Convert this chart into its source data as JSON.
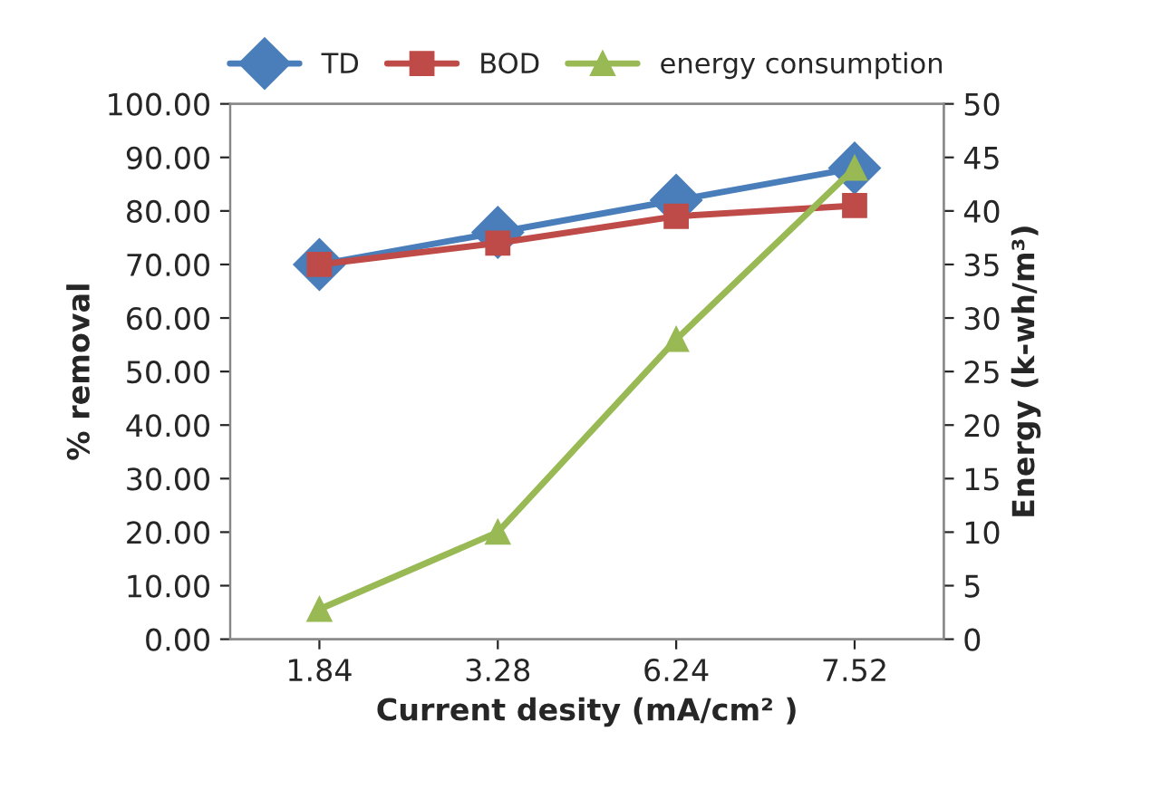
{
  "chart_data": {
    "type": "line",
    "xlabel": "Current desity (mA/cm² )",
    "ylabel": "% removal",
    "y2label": "Energy (k-wh/m³)",
    "categories": [
      "1.84",
      "3.28",
      "6.24",
      "7.52"
    ],
    "series": [
      {
        "name": "TD",
        "color": "#4a7ebb",
        "marker": "diamond",
        "values": [
          70,
          76,
          82,
          88
        ]
      },
      {
        "name": "BOD",
        "color": "#be4b48",
        "marker": "square",
        "values": [
          70,
          74,
          79,
          81
        ]
      },
      {
        "name": "energy consumption",
        "color": "#98b954",
        "marker": "triangle",
        "axis": "y2",
        "values": [
          2.8,
          10,
          28,
          44
        ]
      }
    ],
    "ylim": [
      0,
      100
    ],
    "yticks": [
      {
        "value": 0,
        "label": "0.00"
      },
      {
        "value": 10,
        "label": "10.00"
      },
      {
        "value": 20,
        "label": "20.00"
      },
      {
        "value": 30,
        "label": "30.00"
      },
      {
        "value": 40,
        "label": "40.00"
      },
      {
        "value": 50,
        "label": "50.00"
      },
      {
        "value": 60,
        "label": "60.00"
      },
      {
        "value": 70,
        "label": "70.00"
      },
      {
        "value": 80,
        "label": "80.00"
      },
      {
        "value": 90,
        "label": "90.00"
      },
      {
        "value": 100,
        "label": "100.00"
      }
    ],
    "y2lim": [
      0,
      50
    ],
    "y2ticks": [
      0,
      5,
      10,
      15,
      20,
      25,
      30,
      35,
      40,
      45,
      50
    ],
    "legend": "top",
    "grid": false
  }
}
